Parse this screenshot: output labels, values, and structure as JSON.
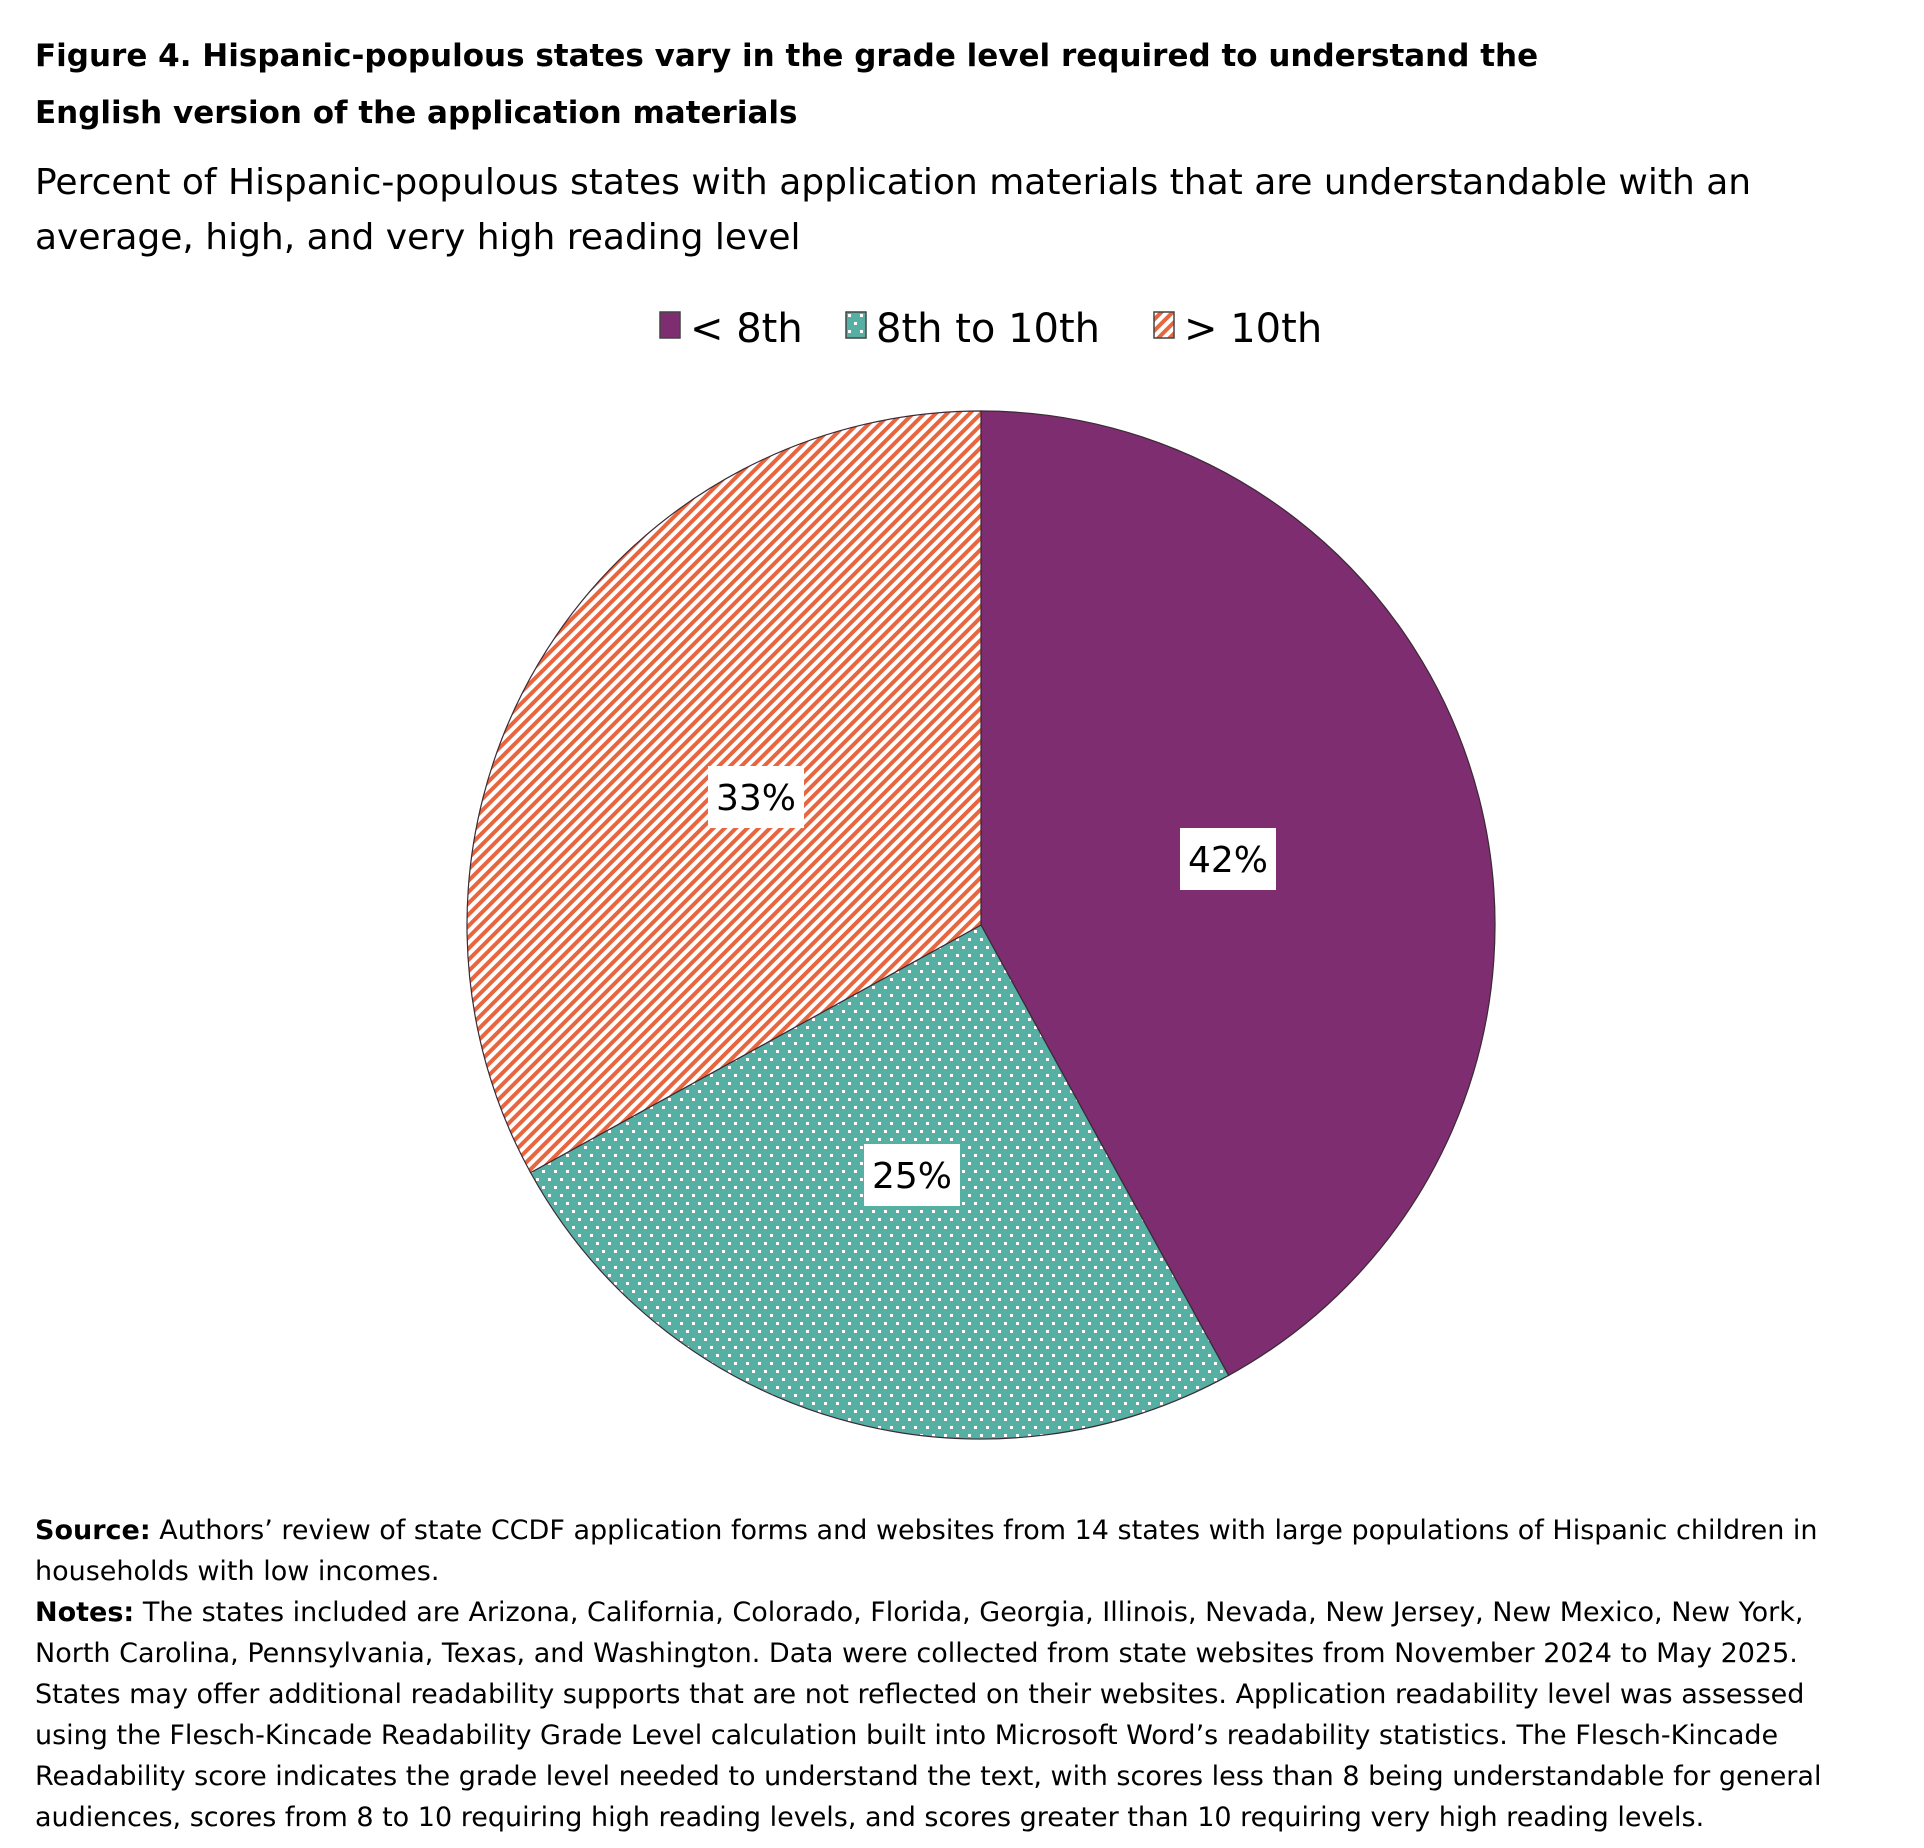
{
  "title_lines": [
    "Figure 4. Hispanic-populous states vary in the grade level required to understand the",
    "English version of the application materials"
  ],
  "subtitle_lines": [
    "Percent of Hispanic-populous states with application materials that are understandable with an",
    "average, high, and very high reading level"
  ],
  "chart_data": {
    "type": "pie",
    "title": "Figure 4. Hispanic-populous states vary in the grade level required to understand the English version of the application materials",
    "legend_placement": "top",
    "slices": [
      {
        "label": "< 8th",
        "value": 42,
        "data_label": "42%",
        "color": "#7E2D70",
        "pattern": "solid"
      },
      {
        "label": "8th to 10th",
        "value": 25,
        "data_label": "25%",
        "color": "#55AFA3",
        "pattern": "dots"
      },
      {
        "label": "> 10th",
        "value": 33,
        "data_label": "33%",
        "color": "#E8663F",
        "pattern": "stripes"
      }
    ]
  },
  "notes": {
    "source_label": "Source:",
    "source_lines": [
      " Authors’ review of state CCDF application forms and websites from 14 states with large populations of Hispanic children in",
      "households with low incomes."
    ],
    "notes_label": "Notes:",
    "notes_lines": [
      " The states included are Arizona, California, Colorado, Florida, Georgia, Illinois, Nevada, New Jersey, New Mexico, New York,",
      "North Carolina, Pennsylvania, Texas, and Washington. Data were collected from state websites from November 2024 to May 2025.",
      "States may offer additional readability supports that are not reflected on their websites. Application readability level was assessed",
      "using the Flesch-Kincade Readability Grade Level calculation built into Microsoft Word’s readability statistics. The Flesch-Kincade",
      "Readability score indicates the grade level needed to understand the text, with scores less than 8 being understandable for general",
      "audiences, scores from 8 to 10 requiring high reading levels, and scores greater than 10 requiring very high reading levels."
    ]
  }
}
